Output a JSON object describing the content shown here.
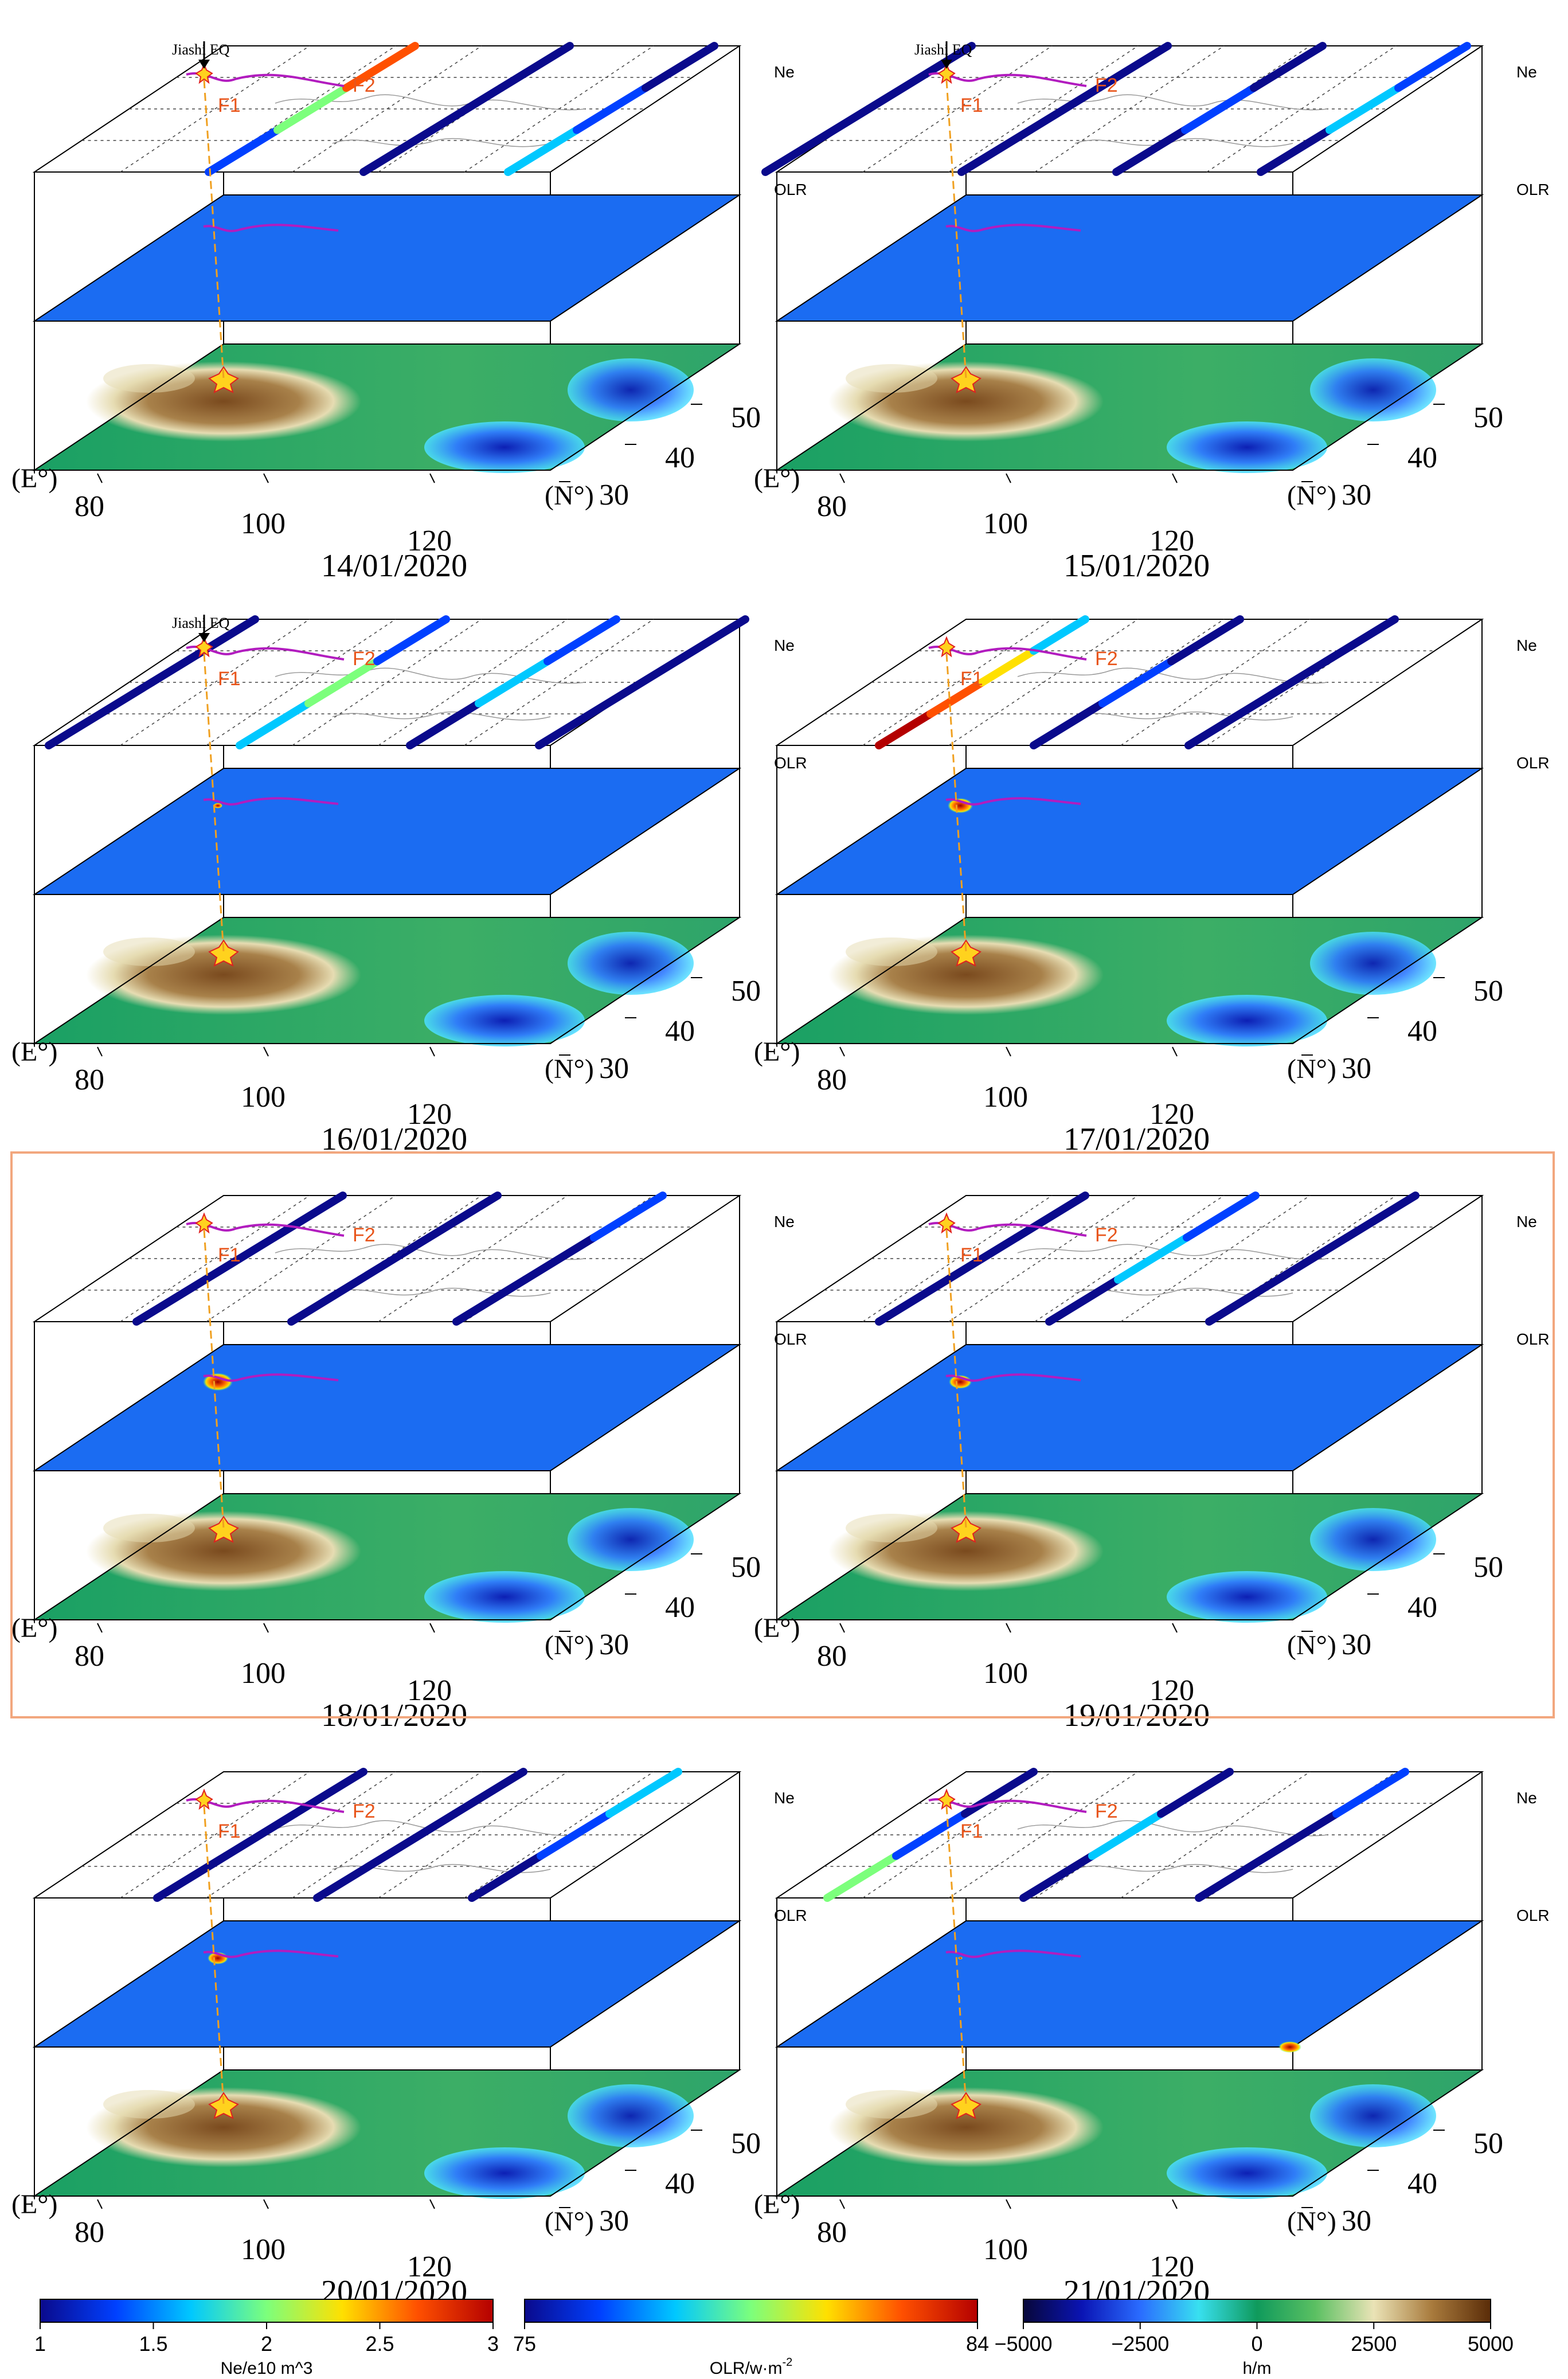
{
  "panels": [
    {
      "date": "14/01/2020",
      "eq_label": "Jiashi EQ"
    },
    {
      "date": "15/01/2020",
      "eq_label": "Jiashi EQ"
    },
    {
      "date": "16/01/2020",
      "eq_label": "Jiashi EQ"
    },
    {
      "date": "17/01/2020",
      "eq_label": ""
    },
    {
      "date": "18/01/2020",
      "eq_label": ""
    },
    {
      "date": "19/01/2020",
      "eq_label": ""
    },
    {
      "date": "20/01/2020",
      "eq_label": ""
    },
    {
      "date": "21/01/2020",
      "eq_label": ""
    }
  ],
  "layer_labels": {
    "ne": "Ne",
    "olr": "OLR"
  },
  "fault_labels": {
    "f1": "F1",
    "f2": "F2"
  },
  "axes": {
    "lon_unit": "(E°)",
    "lat_unit": "(N°)",
    "lon_ticks": [
      "80",
      "100",
      "120"
    ],
    "lat_ticks": [
      "30",
      "40",
      "50"
    ]
  },
  "highlight": {
    "panels": [
      4,
      5
    ],
    "color": "#f2a77e"
  },
  "colorbars": [
    {
      "name": "ne",
      "title": "Ne/e10 m^3",
      "ticks": [
        "1",
        "1.5",
        "2",
        "2.5",
        "3"
      ],
      "stops": [
        "#0a0a8c",
        "#0040ff",
        "#00c8ff",
        "#7cff7c",
        "#ffe000",
        "#ff5000",
        "#b40000"
      ]
    },
    {
      "name": "olr",
      "title": "OLR/w·m",
      "title_sup": "-2",
      "ticks": [
        "75",
        "84"
      ],
      "stops": [
        "#0a0a8c",
        "#0040ff",
        "#00c8ff",
        "#7cff7c",
        "#ffe000",
        "#ff5000",
        "#b40000"
      ]
    },
    {
      "name": "elev",
      "title": "h/m",
      "ticks": [
        "−5000",
        "−2500",
        "0",
        "2500",
        "5000"
      ],
      "stops": [
        "#07073a",
        "#0a14b4",
        "#2a6cff",
        "#38e0f0",
        "#0f9a5c",
        "#5bc062",
        "#eae3b6",
        "#a87a3c",
        "#5a2c08"
      ]
    }
  ],
  "colors": {
    "ocean_plane": "#1b6cf2",
    "orbit_low": "#0a1a9e",
    "fault_line": "#b21cbf",
    "fault_text": "#e8551b",
    "epicenter_line": "#f0a020"
  }
}
